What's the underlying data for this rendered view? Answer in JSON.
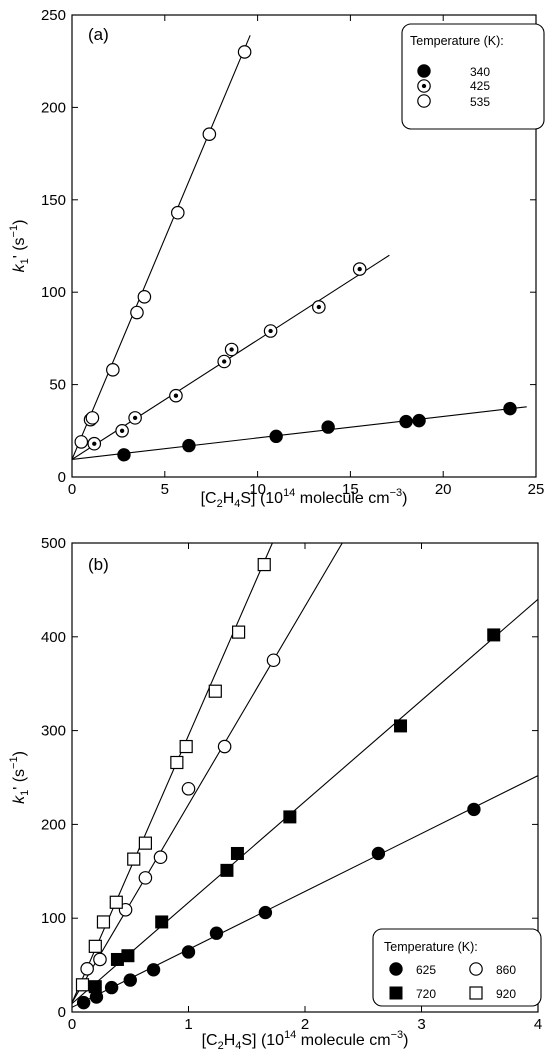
{
  "chart_data": [
    {
      "type": "scatter",
      "panel_label": "(a)",
      "xlabel": "[C2H4S] (10^14 molecule cm^-3)",
      "xlabel_parts": {
        "pre": "[C",
        "sub1": "2",
        "mid": "H",
        "sub2": "4",
        "post": "S] (10",
        "sup1": "14",
        "post2": " molecule cm",
        "sup2": "−3",
        "end": ")"
      },
      "ylabel": "k1' (s^-1)",
      "ylabel_parts": {
        "k": "k",
        "sub": "1",
        "rest": "' (s",
        "sup": "−1",
        "end": ")"
      },
      "xlim": [
        0,
        25
      ],
      "ylim": [
        0,
        250
      ],
      "xticks": [
        0,
        5,
        10,
        15,
        20,
        25
      ],
      "yticks": [
        0,
        50,
        100,
        150,
        200,
        250
      ],
      "legend": {
        "title": "Temperature (K):",
        "placement": "top-right"
      },
      "series": [
        {
          "name": "340",
          "marker": "filled-circle",
          "points": [
            [
              2.8,
              12
            ],
            [
              6.3,
              17
            ],
            [
              11.0,
              22
            ],
            [
              13.8,
              27
            ],
            [
              18.0,
              30
            ],
            [
              18.7,
              30.5
            ],
            [
              23.6,
              37
            ]
          ],
          "fit": {
            "x": [
              0,
              24.5
            ],
            "y": [
              9.5,
              38
            ]
          }
        },
        {
          "name": "425",
          "marker": "dotted-circle",
          "points": [
            [
              1.2,
              18
            ],
            [
              2.7,
              25
            ],
            [
              3.4,
              32
            ],
            [
              5.6,
              44
            ],
            [
              8.2,
              62.5
            ],
            [
              8.6,
              69
            ],
            [
              10.7,
              79
            ],
            [
              13.3,
              92
            ],
            [
              15.5,
              112.5
            ]
          ],
          "fit": {
            "x": [
              0,
              17.1
            ],
            "y": [
              9.5,
              120
            ]
          }
        },
        {
          "name": "535",
          "marker": "open-circle",
          "points": [
            [
              0.5,
              19
            ],
            [
              1.0,
              31
            ],
            [
              1.1,
              32
            ],
            [
              2.2,
              58
            ],
            [
              3.5,
              89
            ],
            [
              3.9,
              97.5
            ],
            [
              5.7,
              143
            ],
            [
              7.4,
              185.5
            ],
            [
              9.3,
              230
            ]
          ],
          "fit": {
            "x": [
              0,
              9.6
            ],
            "y": [
              9.5,
              239
            ]
          }
        }
      ]
    },
    {
      "type": "scatter",
      "panel_label": "(b)",
      "xlabel": "[C2H4S] (10^14 molecule cm^-3)",
      "xlabel_parts": {
        "pre": "[C",
        "sub1": "2",
        "mid": "H",
        "sub2": "4",
        "post": "S] (10",
        "sup1": "14",
        "post2": " molecule cm",
        "sup2": "−3",
        "end": ")"
      },
      "ylabel": "k1' (s^-1)",
      "ylabel_parts": {
        "k": "k",
        "sub": "1",
        "rest": "' (s",
        "sup": "−1",
        "end": ")"
      },
      "xlim": [
        0,
        4
      ],
      "ylim": [
        0,
        500
      ],
      "xticks": [
        0,
        1,
        2,
        3,
        4
      ],
      "yticks": [
        0,
        100,
        200,
        300,
        400,
        500
      ],
      "legend": {
        "title": "Temperature (K):",
        "placement": "bottom-right"
      },
      "series": [
        {
          "name": "625",
          "marker": "filled-circle",
          "points": [
            [
              0.1,
              10
            ],
            [
              0.21,
              16
            ],
            [
              0.34,
              26
            ],
            [
              0.5,
              34
            ],
            [
              0.7,
              45
            ],
            [
              1.0,
              64
            ],
            [
              1.24,
              84
            ],
            [
              1.66,
              106
            ],
            [
              2.63,
              169
            ],
            [
              3.45,
              216
            ]
          ],
          "fit": {
            "x": [
              0,
              4
            ],
            "y": [
              5,
              252
            ]
          }
        },
        {
          "name": "720",
          "marker": "filled-square",
          "points": [
            [
              0.2,
              27
            ],
            [
              0.39,
              56
            ],
            [
              0.48,
              60
            ],
            [
              0.77,
              96
            ],
            [
              1.33,
              151
            ],
            [
              1.42,
              169
            ],
            [
              1.87,
              208
            ],
            [
              2.82,
              305
            ],
            [
              3.62,
              402
            ]
          ],
          "fit": {
            "x": [
              0,
              4
            ],
            "y": [
              9,
              440
            ]
          }
        },
        {
          "name": "860",
          "marker": "open-circle",
          "points": [
            [
              0.13,
              46
            ],
            [
              0.24,
              56
            ],
            [
              0.46,
              109
            ],
            [
              0.63,
              143
            ],
            [
              0.76,
              165
            ],
            [
              1.0,
              238
            ],
            [
              1.31,
              283
            ],
            [
              1.73,
              375
            ]
          ],
          "fit": {
            "x": [
              0,
              2.32
            ],
            "y": [
              10,
              500
            ]
          }
        },
        {
          "name": "920",
          "marker": "open-square",
          "points": [
            [
              0.09,
              29
            ],
            [
              0.2,
              70
            ],
            [
              0.27,
              96
            ],
            [
              0.38,
              117
            ],
            [
              0.53,
              163
            ],
            [
              0.63,
              180
            ],
            [
              0.9,
              266
            ],
            [
              0.98,
              283
            ],
            [
              1.23,
              342
            ],
            [
              1.43,
              405
            ],
            [
              1.65,
              477
            ]
          ],
          "fit": {
            "x": [
              0,
              1.72
            ],
            "y": [
              10,
              500
            ]
          }
        }
      ]
    }
  ]
}
